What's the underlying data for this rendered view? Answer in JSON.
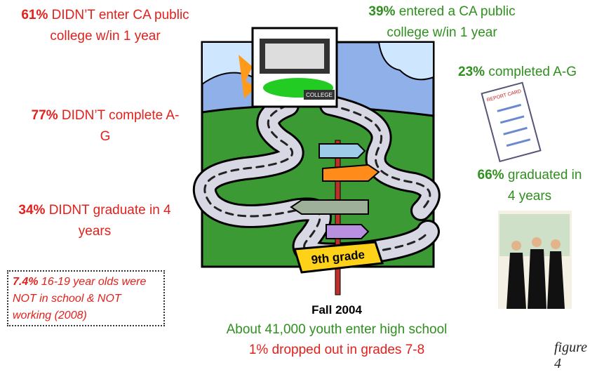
{
  "left": [
    {
      "percent": "61%",
      "text": "DIDN’T enter CA public college w/in 1 year"
    },
    {
      "percent": "77%",
      "text": "DIDN’T complete A-G"
    },
    {
      "percent": "34%",
      "text": "DIDNT graduate in 4 years"
    }
  ],
  "note": {
    "percent": "7.4%",
    "text": "16-19 year olds were NOT in school & NOT working (2008)"
  },
  "right": [
    {
      "percent": "39%",
      "text": "entered a CA public college w/in 1 year"
    },
    {
      "percent": "23%",
      "text": "completed A-G"
    },
    {
      "percent": "66%",
      "text": "graduated in 4 years"
    }
  ],
  "bottom": {
    "title": "Fall 2004",
    "line1": "About 41,000 youth enter high school",
    "line2": "1% dropped out in grades 7-8"
  },
  "figure_label": "figure 4",
  "illustration": {
    "college_sign": "COLLEGE",
    "signpost": "9th grade",
    "report_card": "REPORT CARD"
  }
}
